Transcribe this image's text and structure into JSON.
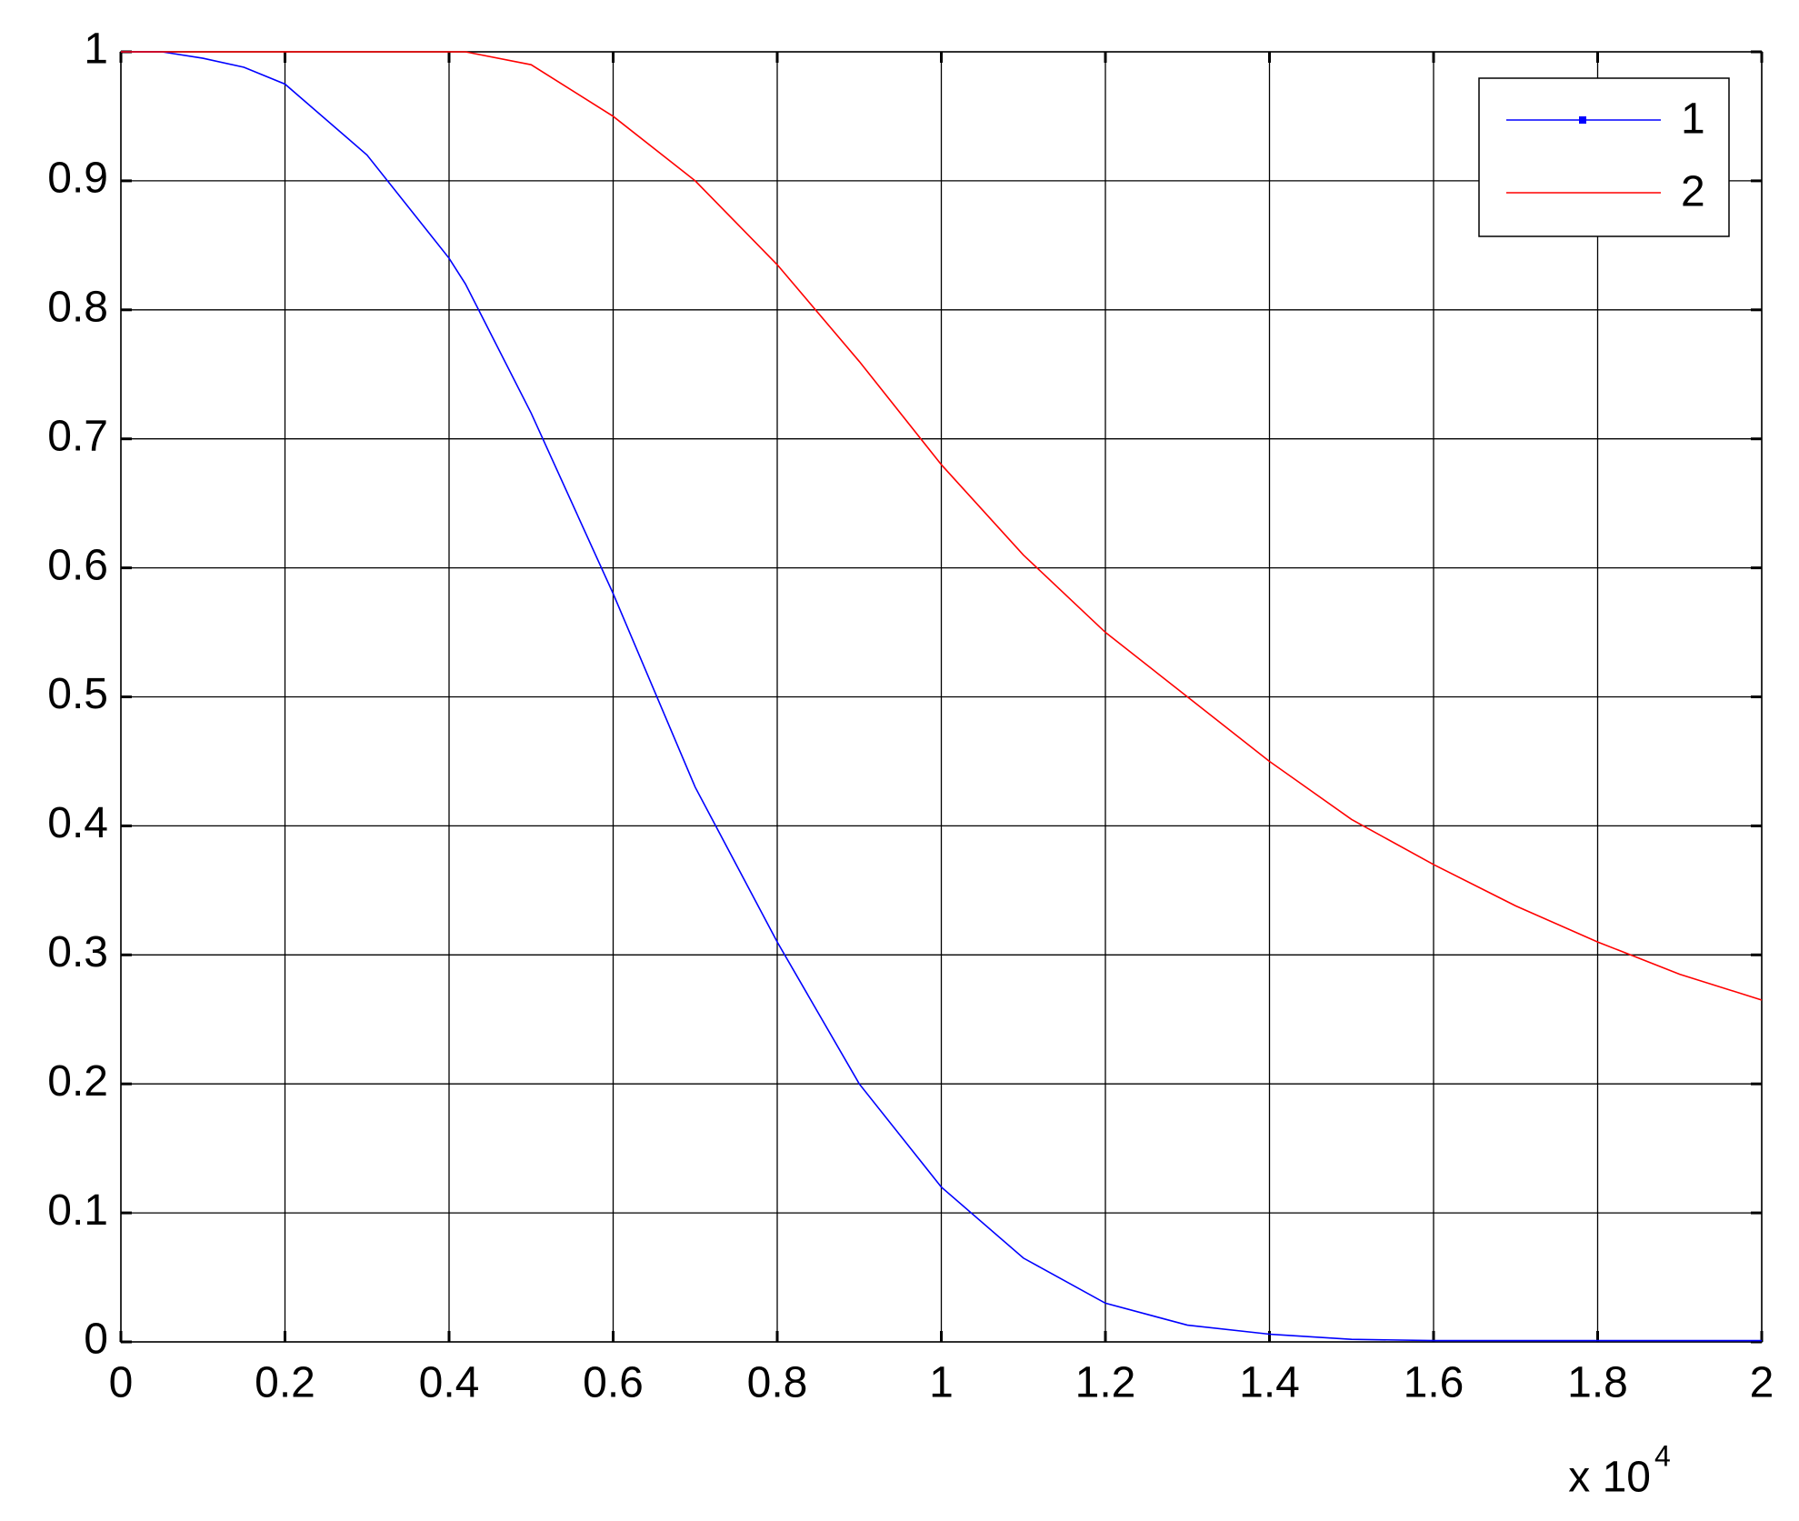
{
  "chart_data": {
    "type": "line",
    "x": [
      0,
      0.05,
      0.1,
      0.15,
      0.2,
      0.3,
      0.4,
      0.42,
      0.5,
      0.6,
      0.7,
      0.8,
      0.9,
      1.0,
      1.1,
      1.2,
      1.3,
      1.4,
      1.5,
      1.6,
      1.7,
      1.8,
      1.9,
      2.0
    ],
    "series": [
      {
        "name": "1",
        "color": "#0000ff",
        "marker": "square",
        "values": [
          1,
          1,
          0.995,
          0.988,
          0.975,
          0.92,
          0.84,
          0.82,
          0.72,
          0.58,
          0.43,
          0.31,
          0.2,
          0.12,
          0.065,
          0.03,
          0.013,
          0.006,
          0.002,
          0.001,
          0.001,
          0.001,
          0.001,
          0.001
        ]
      },
      {
        "name": "2",
        "color": "#ff0000",
        "values": [
          1,
          1,
          1,
          1,
          1,
          1,
          1,
          1,
          0.99,
          0.95,
          0.9,
          0.835,
          0.76,
          0.68,
          0.61,
          0.55,
          0.5,
          0.45,
          0.405,
          0.37,
          0.338,
          0.31,
          0.285,
          0.265
        ]
      }
    ],
    "xlim": [
      0,
      2
    ],
    "xticks": [
      0,
      0.2,
      0.4,
      0.6,
      0.8,
      1,
      1.2,
      1.4,
      1.6,
      1.8,
      2
    ],
    "ylim": [
      0,
      1
    ],
    "yticks": [
      0,
      0.1,
      0.2,
      0.3,
      0.4,
      0.5,
      0.6,
      0.7,
      0.8,
      0.9,
      1
    ],
    "x_multiplier": "x 10",
    "x_multiplier_exponent": "4",
    "grid": true,
    "legend": "top-right"
  }
}
